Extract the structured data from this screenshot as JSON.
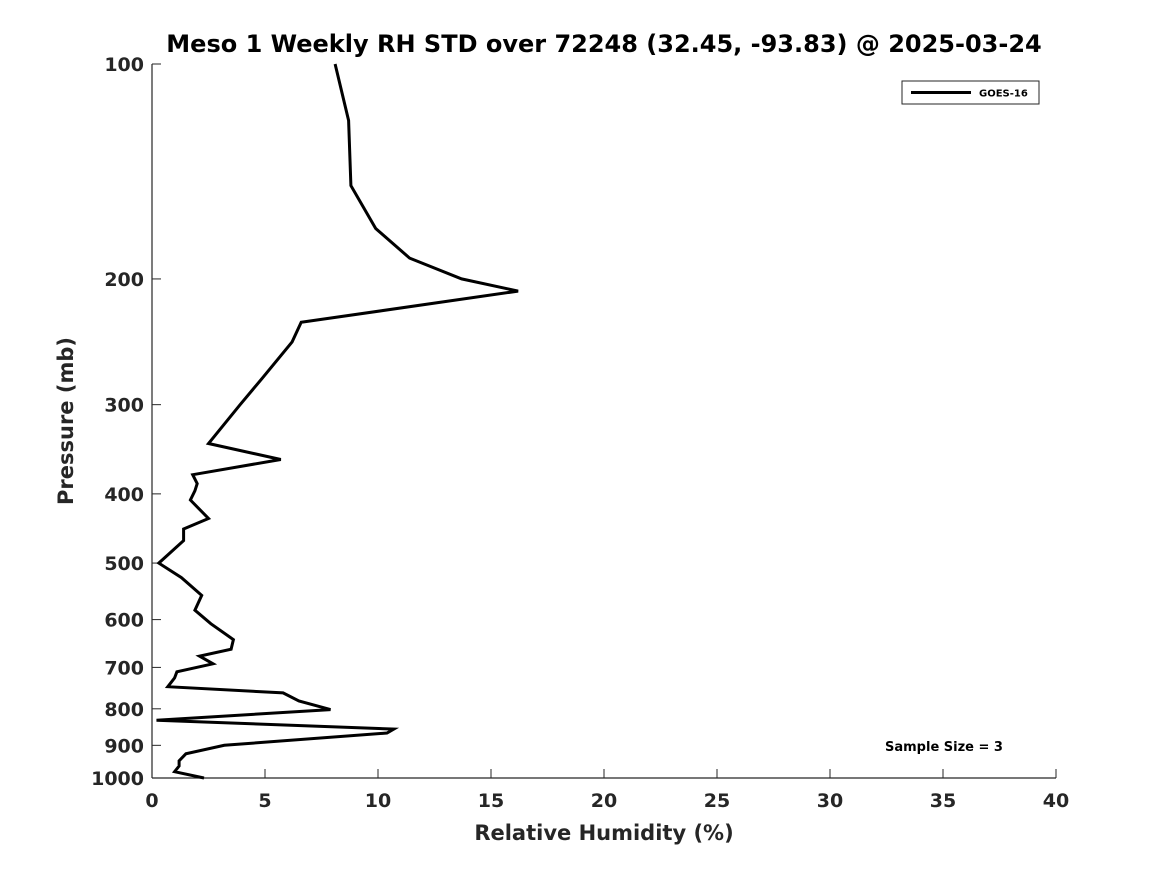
{
  "colors": {
    "line": "#000000",
    "axis": "#262626",
    "background": "#ffffff"
  },
  "chart_data": {
    "type": "line",
    "title": "Meso 1 Weekly RH STD over 72248 (32.45, -93.83) @ 2025-03-24",
    "xlabel": "Relative Humidity (%)",
    "ylabel": "Pressure (mb)",
    "xlim": [
      0,
      40
    ],
    "ylim": [
      100,
      1000
    ],
    "y_scale": "log",
    "y_reversed": true,
    "x_ticks": [
      0,
      5,
      10,
      15,
      20,
      25,
      30,
      35,
      40
    ],
    "y_ticks": [
      100,
      200,
      300,
      400,
      500,
      600,
      700,
      800,
      900,
      1000
    ],
    "grid": false,
    "legend_position": "top-right",
    "annotation": "Sample Size = 3",
    "series": [
      {
        "name": "GOES-16",
        "color": "#000000",
        "x": [
          8.1,
          8.7,
          8.8,
          9.9,
          11.4,
          13.7,
          16.2,
          6.6,
          6.2,
          4.9,
          3.9,
          2.5,
          5.7,
          1.8,
          2.0,
          1.9,
          1.7,
          2.5,
          1.4,
          1.4,
          0.3,
          1.3,
          2.2,
          1.9,
          2.6,
          3.6,
          3.5,
          2.1,
          2.7,
          1.1,
          1.0,
          0.7,
          5.8,
          6.5,
          7.9,
          0.2,
          10.7,
          10.4,
          3.2,
          1.5,
          1.2,
          1.2,
          1.0,
          2.3
        ],
        "y": [
          100,
          120,
          148,
          170,
          187,
          200,
          208,
          230,
          245,
          275,
          300,
          340,
          358,
          376,
          387,
          396,
          408,
          433,
          448,
          465,
          500,
          524,
          555,
          582,
          608,
          640,
          660,
          675,
          692,
          710,
          724,
          745,
          760,
          780,
          802,
          830,
          854,
          865,
          900,
          925,
          946,
          962,
          980,
          1000
        ]
      }
    ]
  }
}
